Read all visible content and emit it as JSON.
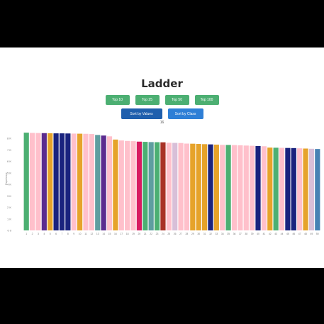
{
  "app": {
    "title": "Ladder",
    "filter_buttons": [
      "Top 10",
      "Top 25",
      "Top 50",
      "Top 100"
    ],
    "sort_buttons": [
      "Sort by Values",
      "Sort by Class"
    ],
    "sort_caption": "16"
  },
  "colors": {
    "frame_background": "#ffffff",
    "page_background": "#000000",
    "button_green": "#4caf72",
    "button_blue_dark": "#1f5fad",
    "button_blue": "#2e7fd6"
  },
  "chart_data": {
    "type": "bar",
    "title": "Ladder",
    "xlabel": "",
    "ylabel": "Experience",
    "ylim": [
      0,
      9000
    ],
    "yticks": [
      0,
      1000,
      2000,
      3000,
      4000,
      5000,
      6000,
      7000,
      8000
    ],
    "ytick_labels": [
      "0 0",
      "1 K",
      "2 K",
      "3 K",
      "4 K",
      "5 K",
      "6 K",
      "7 K",
      "8 K"
    ],
    "categories": [
      "1",
      "2",
      "3",
      "4",
      "5",
      "6",
      "7",
      "8",
      "9",
      "10",
      "11",
      "12",
      "13",
      "14",
      "15",
      "16",
      "17",
      "18",
      "19",
      "20",
      "21",
      "22",
      "23",
      "24",
      "25",
      "26",
      "27",
      "28",
      "29",
      "30",
      "31",
      "32",
      "33",
      "34",
      "35",
      "36",
      "37",
      "38",
      "39",
      "40",
      "41",
      "42",
      "43",
      "44",
      "45",
      "46",
      "47",
      "48",
      "49",
      "50"
    ],
    "values": [
      8500,
      8480,
      8470,
      8460,
      8450,
      8440,
      8440,
      8430,
      8420,
      8410,
      8400,
      8380,
      8300,
      8250,
      8180,
      7900,
      7820,
      7780,
      7760,
      7720,
      7700,
      7680,
      7670,
      7660,
      7620,
      7610,
      7600,
      7550,
      7540,
      7520,
      7500,
      7480,
      7460,
      7440,
      7430,
      7420,
      7400,
      7380,
      7360,
      7340,
      7320,
      7200,
      7190,
      7180,
      7170,
      7160,
      7140,
      7120,
      7100,
      7080
    ],
    "bar_colors": [
      "#4caf72",
      "#ffc0cb",
      "#ffc0cb",
      "#5b2c8f",
      "#e6a32a",
      "#1a237e",
      "#1a237e",
      "#1a237e",
      "#ffc0cb",
      "#e6a32a",
      "#ffc0cb",
      "#ffc0cb",
      "#5f9ea0",
      "#5b2c8f",
      "#ffc0cb",
      "#e6a32a",
      "#ffc0cb",
      "#ffc0cb",
      "#ffc0cb",
      "#d81b60",
      "#4caf72",
      "#5f9ea0",
      "#4caf72",
      "#a93226",
      "#ffc0cb",
      "#d8bfd8",
      "#ffc0cb",
      "#ffc0cb",
      "#e6a32a",
      "#e6a32a",
      "#e6a32a",
      "#1a237e",
      "#e6a32a",
      "#ffc0cb",
      "#4caf72",
      "#ffc0cb",
      "#ffc0cb",
      "#ffc0cb",
      "#ffc0cb",
      "#1a237e",
      "#ffc0cb",
      "#e6a32a",
      "#4caf72",
      "#ffc0cb",
      "#1a237e",
      "#1a237e",
      "#ffc0cb",
      "#e6a32a",
      "#d8bfd8",
      "#4682b4"
    ],
    "grid": false,
    "legend": "none"
  }
}
